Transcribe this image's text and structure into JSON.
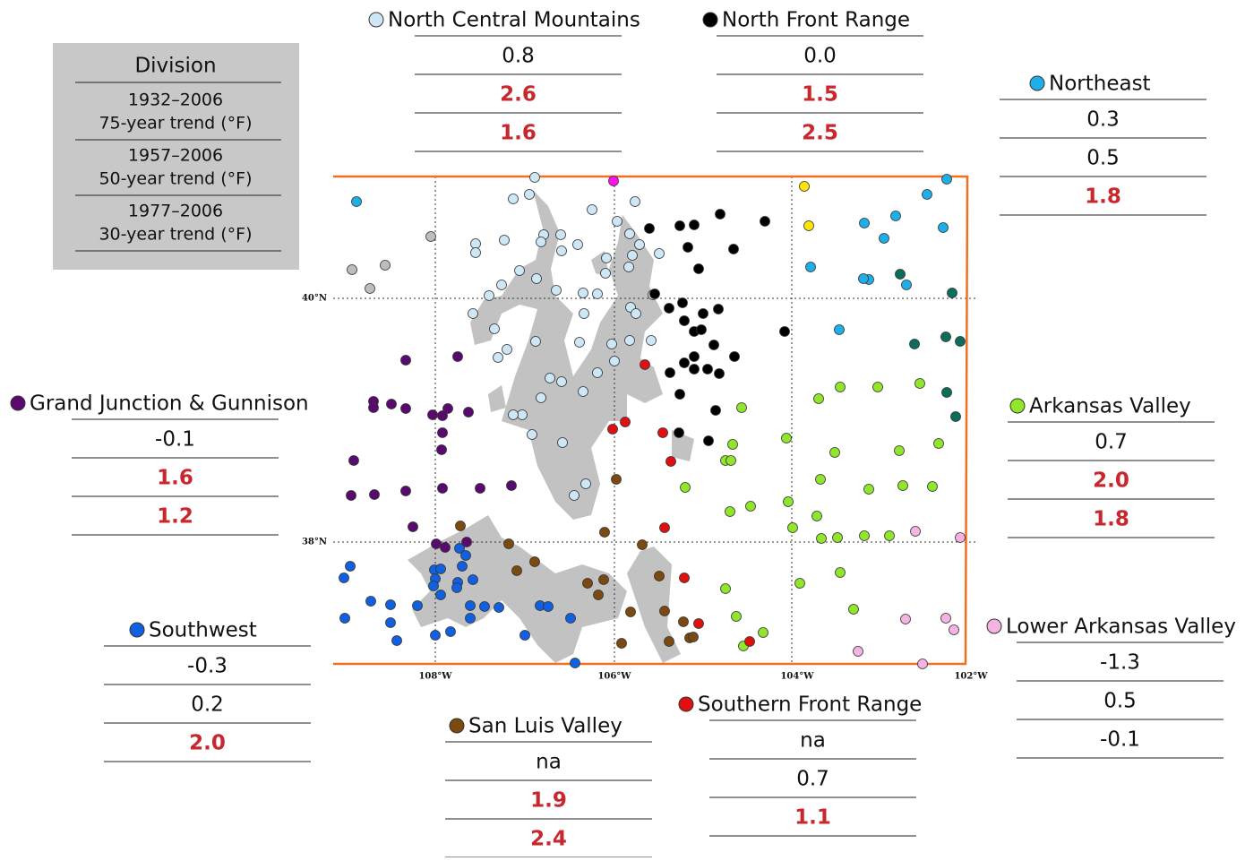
{
  "key": {
    "title": "Division",
    "periods": [
      {
        "years": "1932–2006",
        "label": "75-year trend (°F)"
      },
      {
        "years": "1957–2006",
        "label": "50-year trend (°F)"
      },
      {
        "years": "1977–2006",
        "label": "30-year trend (°F)"
      }
    ]
  },
  "map": {
    "lat_labels": [
      "40°N",
      "38°N"
    ],
    "lon_labels": [
      "108°W",
      "106°W",
      "104°W",
      "102°W"
    ]
  },
  "divisions": [
    {
      "name": "North Central Mountains",
      "color": "#cde7f7",
      "trends": [
        "0.8",
        "2.6",
        "1.6"
      ],
      "significant": [
        false,
        true,
        true
      ]
    },
    {
      "name": "North Front Range",
      "color": "#000000",
      "trends": [
        "0.0",
        "1.5",
        "2.5"
      ],
      "significant": [
        false,
        true,
        true
      ]
    },
    {
      "name": "Northeast",
      "color": "#1eaee8",
      "trends": [
        "0.3",
        "0.5",
        "1.8"
      ],
      "significant": [
        false,
        false,
        true
      ]
    },
    {
      "name": "Grand Junction & Gunnison",
      "color": "#5a0a6e",
      "trends": [
        "-0.1",
        "1.6",
        "1.2"
      ],
      "significant": [
        false,
        true,
        true
      ]
    },
    {
      "name": "Arkansas Valley",
      "color": "#8fe62a",
      "trends": [
        "0.7",
        "2.0",
        "1.8"
      ],
      "significant": [
        false,
        true,
        true
      ]
    },
    {
      "name": "Southwest",
      "color": "#1060e0",
      "trends": [
        "-0.3",
        "0.2",
        "2.0"
      ],
      "significant": [
        false,
        false,
        true
      ]
    },
    {
      "name": "Lower Arkansas Valley",
      "color": "#f5b3e3",
      "trends": [
        "-1.3",
        "0.5",
        "-0.1"
      ],
      "significant": [
        false,
        false,
        false
      ]
    },
    {
      "name": "San Luis Valley",
      "color": "#7a4a10",
      "trends": [
        "na",
        "1.9",
        "2.4"
      ],
      "significant": [
        false,
        true,
        true
      ]
    },
    {
      "name": "Southern Front Range",
      "color": "#e01010",
      "trends": [
        "na",
        "0.7",
        "1.1"
      ],
      "significant": [
        false,
        false,
        true
      ]
    }
  ]
}
